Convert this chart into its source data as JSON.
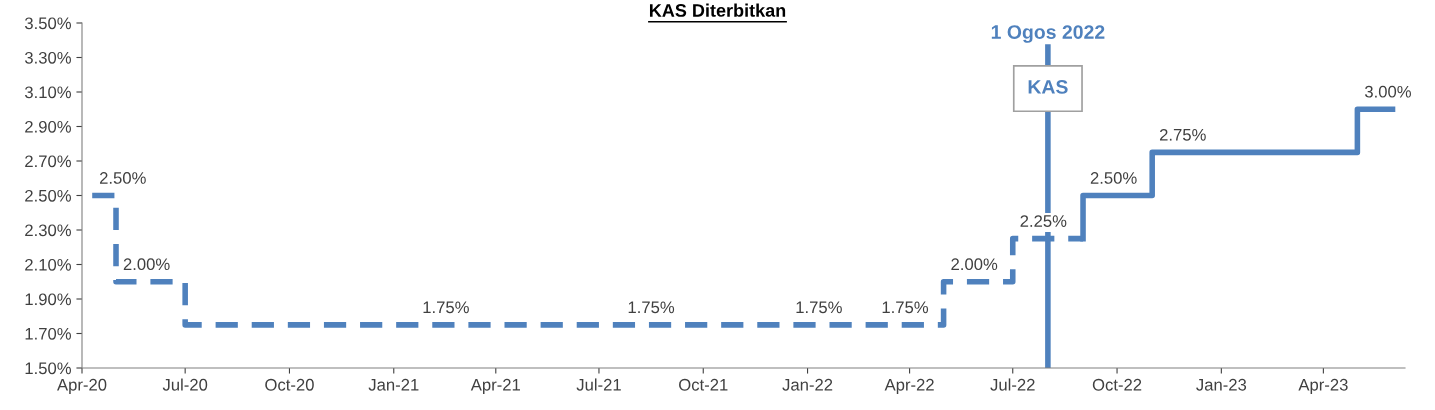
{
  "chart_data": {
    "type": "step",
    "title": "KAS Diterbitkan",
    "series": [
      {
        "color": "#4f81bd",
        "line_style": "dashed",
        "x": [
          "2020-04-10",
          "2020-05-01",
          "2020-07-01",
          "2022-05-01",
          "2022-07-01",
          "2022-09-01"
        ],
        "values": [
          2.5,
          2.0,
          1.75,
          2.0,
          2.25,
          2.25
        ]
      },
      {
        "color": "#4f81bd",
        "line_style": "solid",
        "x": [
          "2022-09-01",
          "2022-09-01",
          "2022-11-01",
          "2023-05-01",
          "2023-06-01"
        ],
        "values": [
          2.25,
          2.5,
          2.75,
          3.0,
          3.0
        ]
      }
    ],
    "xlim": [
      "2020-04-01",
      "2023-06-12"
    ],
    "xticks": [
      {
        "value": "2020-04-01",
        "label": "Apr-20"
      },
      {
        "value": "2020-07-01",
        "label": "Jul-20"
      },
      {
        "value": "2020-10-01",
        "label": "Oct-20"
      },
      {
        "value": "2021-01-01",
        "label": "Jan-21"
      },
      {
        "value": "2021-04-01",
        "label": "Apr-21"
      },
      {
        "value": "2021-07-01",
        "label": "Jul-21"
      },
      {
        "value": "2021-10-01",
        "label": "Oct-21"
      },
      {
        "value": "2022-01-01",
        "label": "Jan-22"
      },
      {
        "value": "2022-04-01",
        "label": "Apr-22"
      },
      {
        "value": "2022-07-01",
        "label": "Jul-22"
      },
      {
        "value": "2022-10-01",
        "label": "Oct-22"
      },
      {
        "value": "2023-01-01",
        "label": "Jan-23"
      },
      {
        "value": "2023-04-01",
        "label": "Apr-23"
      }
    ],
    "ylim": [
      1.5,
      3.5
    ],
    "yticks": [
      {
        "value": 1.5,
        "label": "1.50%"
      },
      {
        "value": 1.7,
        "label": "1.70%"
      },
      {
        "value": 1.9,
        "label": "1.90%"
      },
      {
        "value": 2.1,
        "label": "2.10%"
      },
      {
        "value": 2.3,
        "label": "2.30%"
      },
      {
        "value": 2.5,
        "label": "2.50%"
      },
      {
        "value": 2.7,
        "label": "2.70%"
      },
      {
        "value": 2.9,
        "label": "2.90%"
      },
      {
        "value": 3.1,
        "label": "3.10%"
      },
      {
        "value": 3.3,
        "label": "3.30%"
      },
      {
        "value": 3.5,
        "label": "3.50%"
      }
    ],
    "ref_lines": [
      {
        "axis": "x",
        "value": "2022-08-01",
        "label": "1 Ogos 2022",
        "color": "#4f81bd"
      }
    ],
    "annotations": [
      {
        "text": "KAS",
        "x": "2022-08-01",
        "y": 3.12
      },
      {
        "text": "2.50%",
        "x": "2020-04-10",
        "y": 2.5
      },
      {
        "text": "2.00%",
        "x": "2020-05-01",
        "y": 2.0
      },
      {
        "text": "1.75%",
        "x": "2021-01-20",
        "y": 1.75
      },
      {
        "text": "1.75%",
        "x": "2021-07-20",
        "y": 1.75
      },
      {
        "text": "1.75%",
        "x": "2021-12-15",
        "y": 1.75
      },
      {
        "text": "1.75%",
        "x": "2022-03-01",
        "y": 1.75
      },
      {
        "text": "2.00%",
        "x": "2022-05-01",
        "y": 2.0
      },
      {
        "text": "2.25%",
        "x": "2022-07-01",
        "y": 2.25
      },
      {
        "text": "2.50%",
        "x": "2022-09-01",
        "y": 2.5
      },
      {
        "text": "2.75%",
        "x": "2022-11-01",
        "y": 2.75
      },
      {
        "text": "3.00%",
        "x": "2023-05-01",
        "y": 3.0
      }
    ],
    "grid": false,
    "legend": false
  }
}
